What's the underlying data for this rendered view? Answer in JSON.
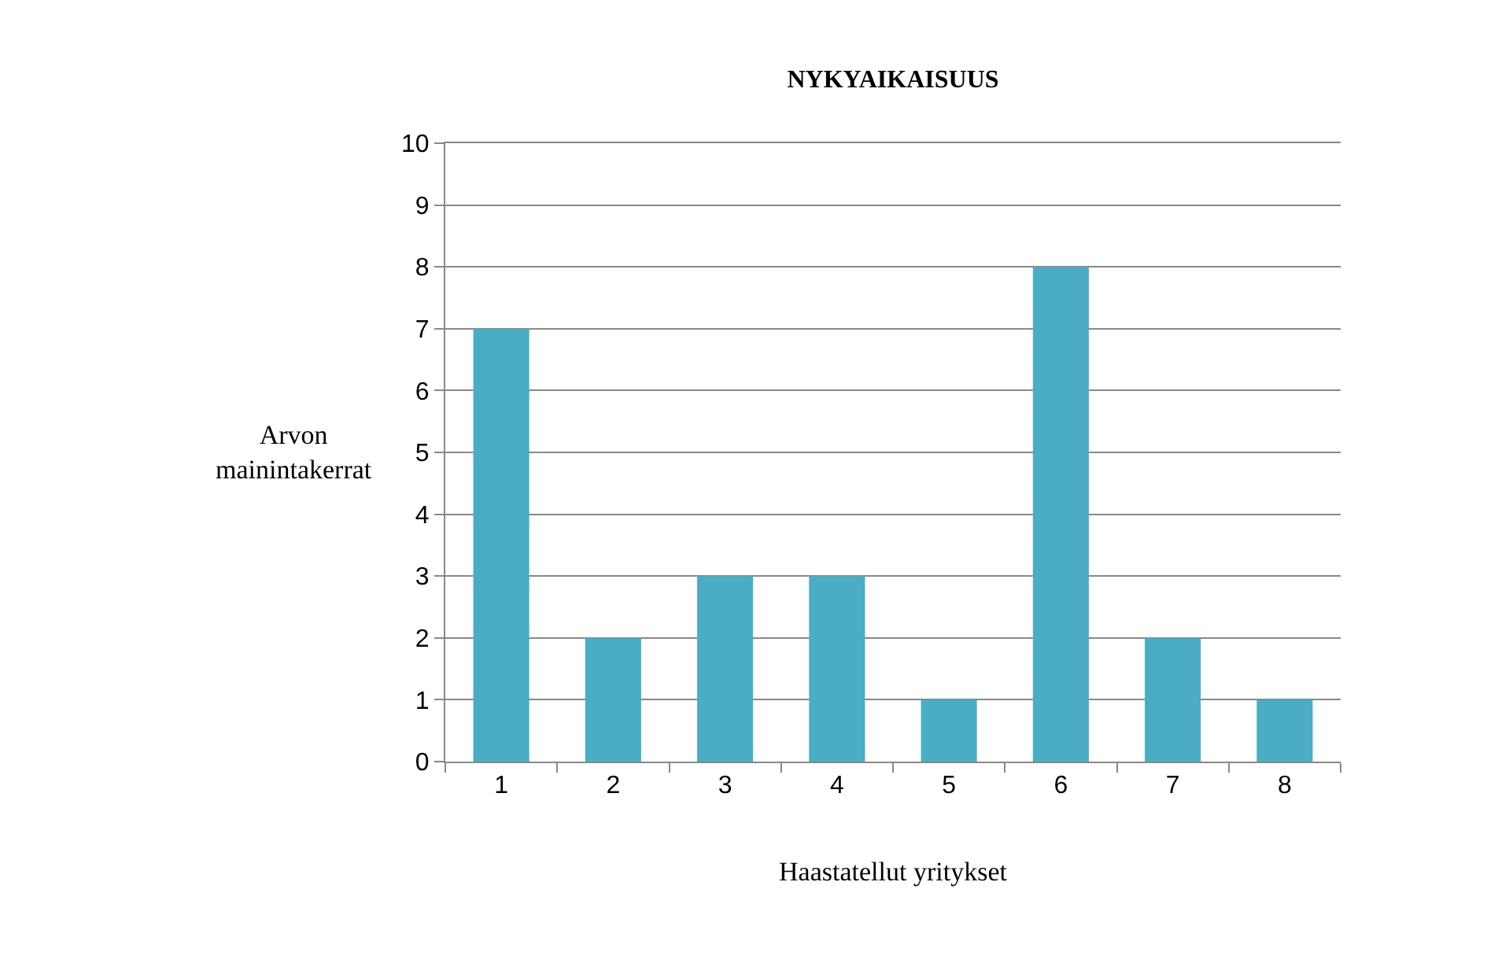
{
  "chart_data": {
    "type": "bar",
    "title": "NYKYAIKAISUUS",
    "xlabel": "Haastatellut yritykset",
    "ylabel": "Arvon mainintakerrat",
    "categories": [
      "1",
      "2",
      "3",
      "4",
      "5",
      "6",
      "7",
      "8"
    ],
    "series": [
      {
        "color": "#4bacc6",
        "values": [
          7,
          2,
          3,
          3,
          1,
          8,
          2,
          1
        ]
      }
    ],
    "ylim": [
      0,
      10
    ],
    "yticks": [
      0,
      1,
      2,
      3,
      4,
      5,
      6,
      7,
      8,
      9,
      10
    ],
    "grid": "y"
  }
}
